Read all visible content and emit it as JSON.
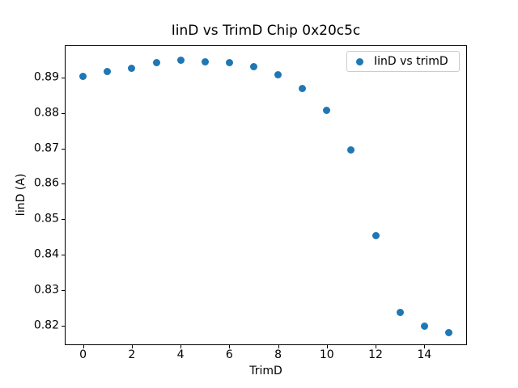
{
  "figure": {
    "background": "#ffffff",
    "spine_color": "#000000",
    "legend_border_color": "#cccccc"
  },
  "chart_data": {
    "type": "scatter",
    "title": "IinD vs TrimD Chip 0x20c5c",
    "xlabel": "TrimD",
    "ylabel": "IinD (A)",
    "legend": {
      "label": "IinD vs trimD",
      "position": "upper right"
    },
    "marker_color": "#1f77b4",
    "grid": false,
    "x": [
      0,
      1,
      2,
      3,
      4,
      5,
      6,
      7,
      8,
      9,
      10,
      11,
      12,
      13,
      14,
      15
    ],
    "y": [
      0.8903,
      0.8917,
      0.8926,
      0.8941,
      0.8948,
      0.8945,
      0.8942,
      0.893,
      0.8907,
      0.8868,
      0.8807,
      0.8695,
      0.8454,
      0.8237,
      0.8198,
      0.8179
    ],
    "xlim": [
      -0.75,
      15.75
    ],
    "ylim": [
      0.8144,
      0.8991
    ],
    "xticks": [
      0,
      2,
      4,
      6,
      8,
      10,
      12,
      14
    ],
    "yticks": [
      0.82,
      0.83,
      0.84,
      0.85,
      0.86,
      0.87,
      0.88,
      0.89
    ]
  }
}
